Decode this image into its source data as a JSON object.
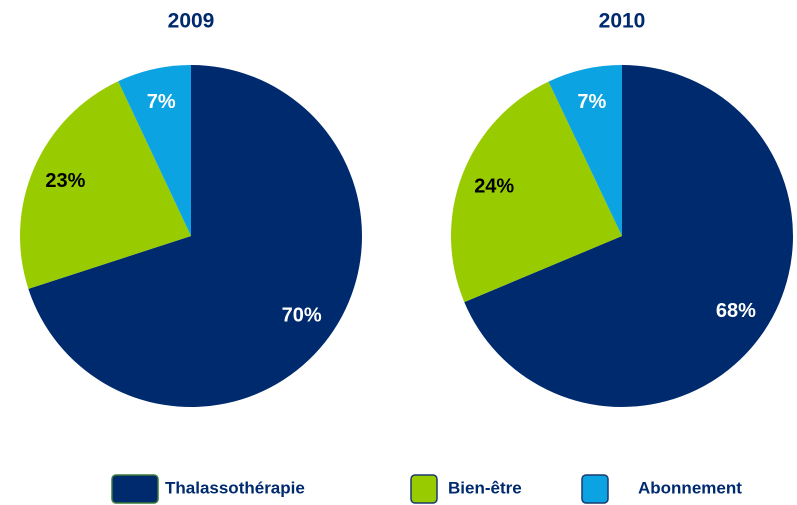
{
  "chart_data": [
    {
      "type": "pie",
      "title": "2009",
      "categories": [
        "Thalassothérapie",
        "Bien-être",
        "Abonnement"
      ],
      "values": [
        70,
        23,
        7
      ],
      "value_labels": [
        "70%",
        "23%",
        "7%"
      ],
      "colors": [
        "#002a6e",
        "#99cc00",
        "#0ba3e2"
      ]
    },
    {
      "type": "pie",
      "title": "2010",
      "categories": [
        "Thalassothérapie",
        "Bien-être",
        "Abonnement"
      ],
      "values": [
        68,
        24,
        7
      ],
      "value_labels": [
        "68%",
        "24%",
        "7%"
      ],
      "colors": [
        "#002a6e",
        "#99cc00",
        "#0ba3e2"
      ]
    }
  ]
}
